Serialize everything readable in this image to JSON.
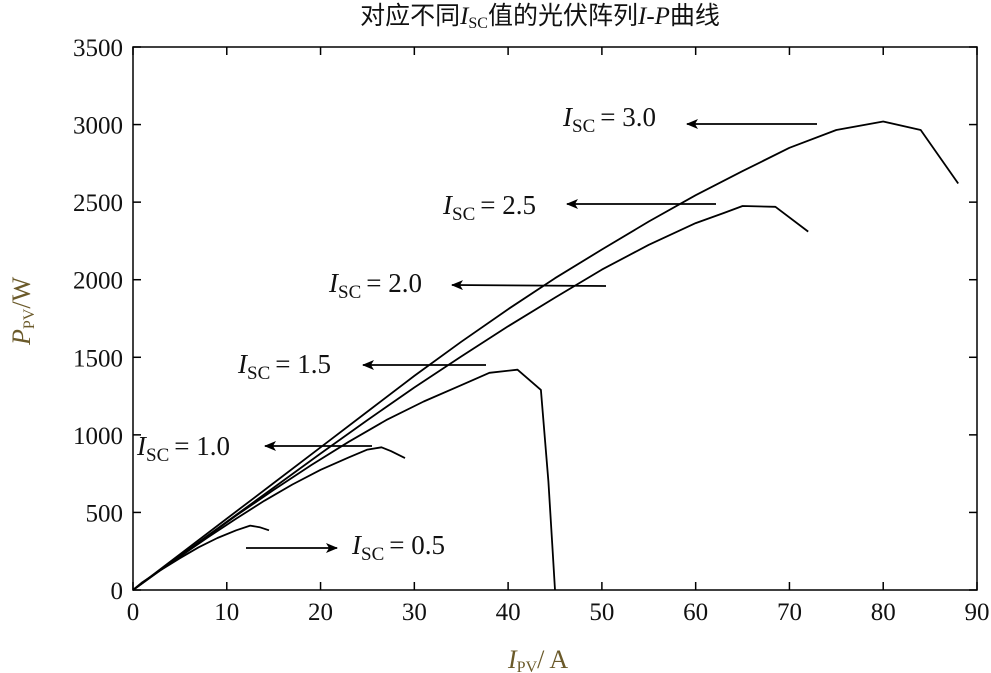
{
  "chart_data": {
    "type": "line",
    "title": {
      "prefix": "对应不同",
      "var": "I",
      "sub": "SC",
      "mid": "值的光伏阵列",
      "var2": "I-P",
      "suffix": "曲线"
    },
    "xlabel": {
      "var": "I",
      "sub": "PV",
      "unit": "/ A"
    },
    "ylabel": {
      "var": "P",
      "sub": "PV",
      "unit": "/W"
    },
    "xlim": [
      0,
      90
    ],
    "ylim": [
      0,
      3500
    ],
    "xticks": [
      0,
      10,
      20,
      30,
      40,
      50,
      60,
      70,
      80,
      90
    ],
    "yticks": [
      0,
      500,
      1000,
      1500,
      2000,
      2500,
      3000,
      3500
    ],
    "grid": false,
    "legend": "none",
    "series": [
      {
        "label_var": "I",
        "label_sub": "SC",
        "label_value": "= 0.5",
        "points": [
          [
            0,
            0
          ],
          [
            1,
            50
          ],
          [
            3,
            130
          ],
          [
            5,
            205
          ],
          [
            7,
            275
          ],
          [
            9,
            335
          ],
          [
            11,
            385
          ],
          [
            12.5,
            415
          ],
          [
            13.5,
            405
          ],
          [
            14.5,
            385
          ]
        ]
      },
      {
        "label_var": "I",
        "label_sub": "SC",
        "label_value": "= 1.0",
        "points": [
          [
            0,
            0
          ],
          [
            2,
            90
          ],
          [
            5,
            215
          ],
          [
            8,
            340
          ],
          [
            11,
            460
          ],
          [
            14,
            575
          ],
          [
            17,
            680
          ],
          [
            20,
            775
          ],
          [
            23,
            855
          ],
          [
            25,
            905
          ],
          [
            26.5,
            920
          ],
          [
            27.5,
            895
          ],
          [
            29,
            850
          ]
        ]
      },
      {
        "label_var": "I",
        "label_sub": "SC",
        "label_value": "= 1.5",
        "points": [
          [
            0,
            0
          ],
          [
            3,
            130
          ],
          [
            7,
            305
          ],
          [
            11,
            480
          ],
          [
            15,
            645
          ],
          [
            19,
            805
          ],
          [
            23,
            955
          ],
          [
            27,
            1095
          ],
          [
            31,
            1215
          ],
          [
            35,
            1320
          ],
          [
            38,
            1400
          ],
          [
            41,
            1420
          ],
          [
            43.5,
            1290
          ],
          [
            44.3,
            700
          ],
          [
            44.7,
            300
          ],
          [
            45,
            0
          ]
        ]
      },
      {
        "label_var": "I",
        "label_sub": "SC",
        "label_value": "= 2.0",
        "points": [
          [
            0,
            0
          ],
          [
            5,
            220
          ],
          [
            10,
            440
          ],
          [
            15,
            660
          ],
          [
            20,
            880
          ],
          [
            25,
            1095
          ],
          [
            30,
            1305
          ],
          [
            35,
            1505
          ],
          [
            40,
            1700
          ],
          [
            45,
            1885
          ],
          [
            50,
            2065
          ],
          [
            55,
            2225
          ],
          [
            60,
            2365
          ],
          [
            63,
            2430
          ],
          [
            65,
            2475
          ],
          [
            68.5,
            2470
          ],
          [
            72,
            2310
          ]
        ]
      },
      {
        "label_var": "I",
        "label_sub": "SC",
        "label_value": "= 2.5",
        "points": [
          [
            0,
            0
          ],
          [
            5,
            230
          ],
          [
            10,
            460
          ],
          [
            15,
            690
          ],
          [
            20,
            920
          ],
          [
            25,
            1150
          ],
          [
            30,
            1380
          ],
          [
            35,
            1600
          ],
          [
            40,
            1810
          ],
          [
            45,
            2010
          ],
          [
            50,
            2195
          ],
          [
            55,
            2375
          ],
          [
            60,
            2545
          ],
          [
            65,
            2700
          ],
          [
            70,
            2850
          ],
          [
            75,
            2965
          ],
          [
            80,
            3020
          ],
          [
            84,
            2965
          ],
          [
            88,
            2620
          ]
        ]
      }
    ],
    "annotations": [
      {
        "var": "I",
        "sub": "SC",
        "value": "= 3.0"
      },
      {
        "var": "I",
        "sub": "SC",
        "value": "= 2.5"
      },
      {
        "var": "I",
        "sub": "SC",
        "value": "= 2.0"
      },
      {
        "var": "I",
        "sub": "SC",
        "value": "= 1.5"
      },
      {
        "var": "I",
        "sub": "SC",
        "value": "= 1.0"
      },
      {
        "var": "I",
        "sub": "SC",
        "value": "= 0.5"
      }
    ]
  }
}
